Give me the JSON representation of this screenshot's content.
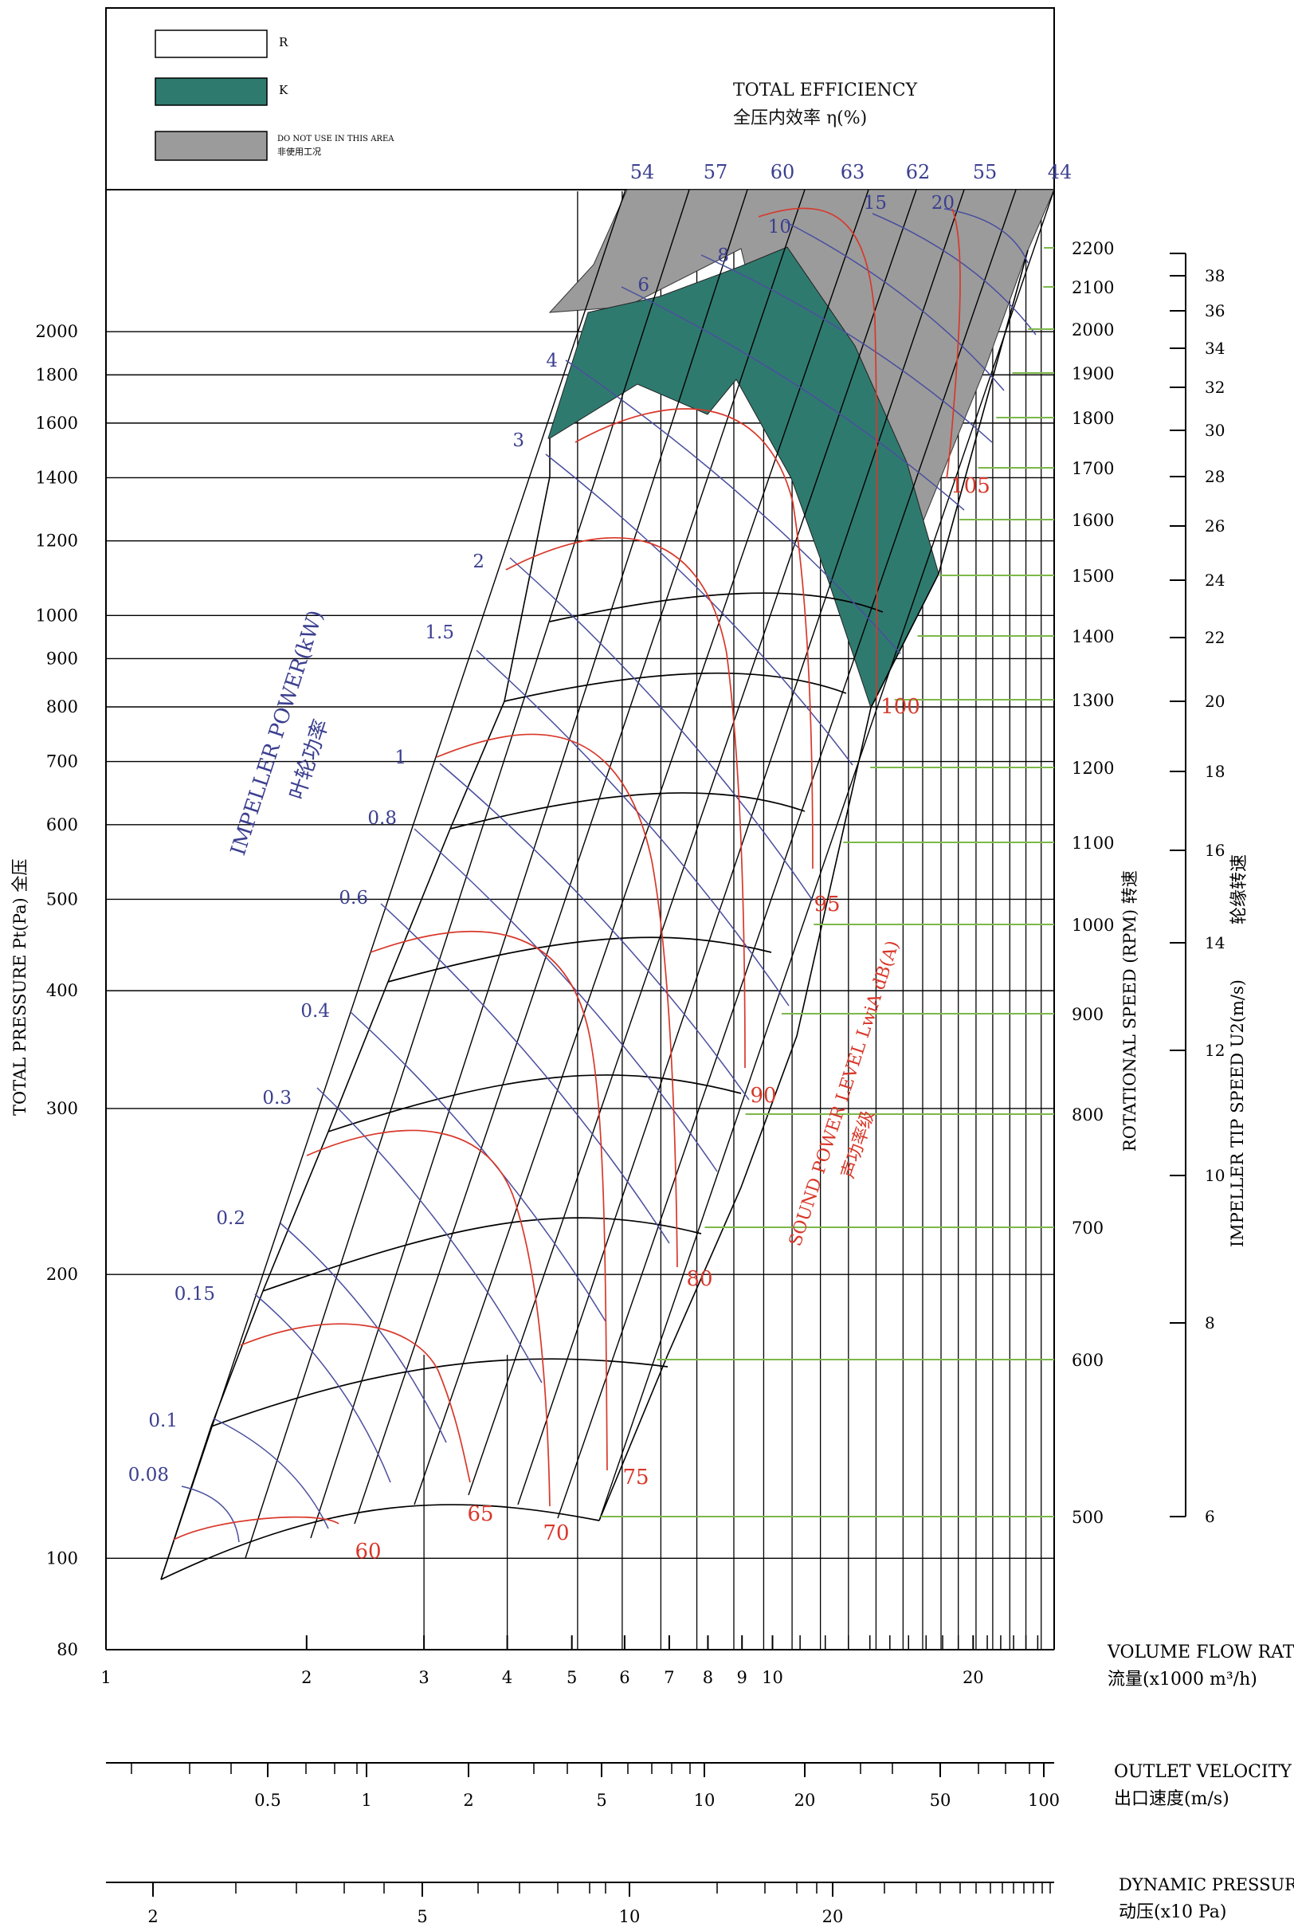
{
  "chart_data": {
    "type": "fan-performance-nomograph",
    "legend": [
      {
        "key": "R",
        "label": "R",
        "color": "#ffffff"
      },
      {
        "key": "K",
        "label": "K",
        "color": "#2f7a6f"
      },
      {
        "key": "na",
        "label": "DO NOT USE IN THIS AREA",
        "label2": "非使用工况",
        "color": "#9b9b9b"
      }
    ],
    "efficiency": {
      "title": "TOTAL EFFICIENCY",
      "title2": "全压内效率  η(%)",
      "labels": [
        "54",
        "57",
        "60",
        "63",
        "62",
        "55",
        "44"
      ]
    },
    "y_axis": {
      "label": "TOTAL PRESSURE Pt(Pa)  全压",
      "scale": "log",
      "range": [
        80,
        2400
      ],
      "ticks": [
        "80",
        "100",
        "200",
        "300",
        "400",
        "500",
        "600",
        "700",
        "800",
        "900",
        "1000",
        "1200",
        "1400",
        "1600",
        "1800",
        "2000"
      ],
      "tick_values": [
        80,
        100,
        200,
        300,
        400,
        500,
        600,
        700,
        800,
        900,
        1000,
        1200,
        1400,
        1600,
        1800,
        2000
      ]
    },
    "x_axis": {
      "label": "VOLUME FLOW RATE",
      "label2": "流量(x1000 m³/h)",
      "scale": "log",
      "range": [
        1,
        26
      ],
      "ticks": [
        "1",
        "2",
        "3",
        "4",
        "5",
        "6",
        "7",
        "8",
        "9",
        "10",
        "20"
      ],
      "tick_values": [
        1,
        2,
        3,
        4,
        5,
        6,
        7,
        8,
        9,
        10,
        20
      ]
    },
    "outlet_velocity": {
      "label": "OUTLET VELOCITY",
      "label2": "出口速度(m/s)",
      "ticks": [
        "0.5",
        "1",
        "2",
        "5",
        "10",
        "20",
        "50",
        "100"
      ]
    },
    "dynamic_pressure": {
      "label": "DYNAMIC PRESSURE",
      "label2": "动压(x10 Pa)",
      "ticks": [
        "2",
        "5",
        "10",
        "20"
      ]
    },
    "rotational_speed": {
      "label": "ROTATIONAL SPEED (RPM) 转速",
      "values": [
        "500",
        "600",
        "700",
        "800",
        "900",
        "1000",
        "1100",
        "1200",
        "1300",
        "1400",
        "1500",
        "1600",
        "1700",
        "1800",
        "1900",
        "2000",
        "2100",
        "2200"
      ]
    },
    "tip_speed": {
      "label": "IMPELLER TIP SPEED U2(m/s)",
      "label2": "轮缘转速",
      "values": [
        "6",
        "8",
        "10",
        "12",
        "14",
        "16",
        "18",
        "20",
        "22",
        "24",
        "26",
        "28",
        "30",
        "32",
        "34",
        "36",
        "38"
      ]
    },
    "impeller_power": {
      "label": "IMPELLER POWER(kW)",
      "label2": "叶轮功率",
      "labels": [
        "0.08",
        "0.1",
        "0.15",
        "0.2",
        "0.3",
        "0.4",
        "0.6",
        "0.8",
        "1",
        "1.5",
        "2",
        "3",
        "4",
        "6",
        "8",
        "10",
        "15",
        "20"
      ]
    },
    "sound_power": {
      "label": "SOUND POWER LEVEL LwiA dB(A)",
      "label2": "声功率级",
      "labels": [
        "60",
        "65",
        "70",
        "75",
        "80",
        "90",
        "95",
        "100",
        "105"
      ]
    }
  }
}
